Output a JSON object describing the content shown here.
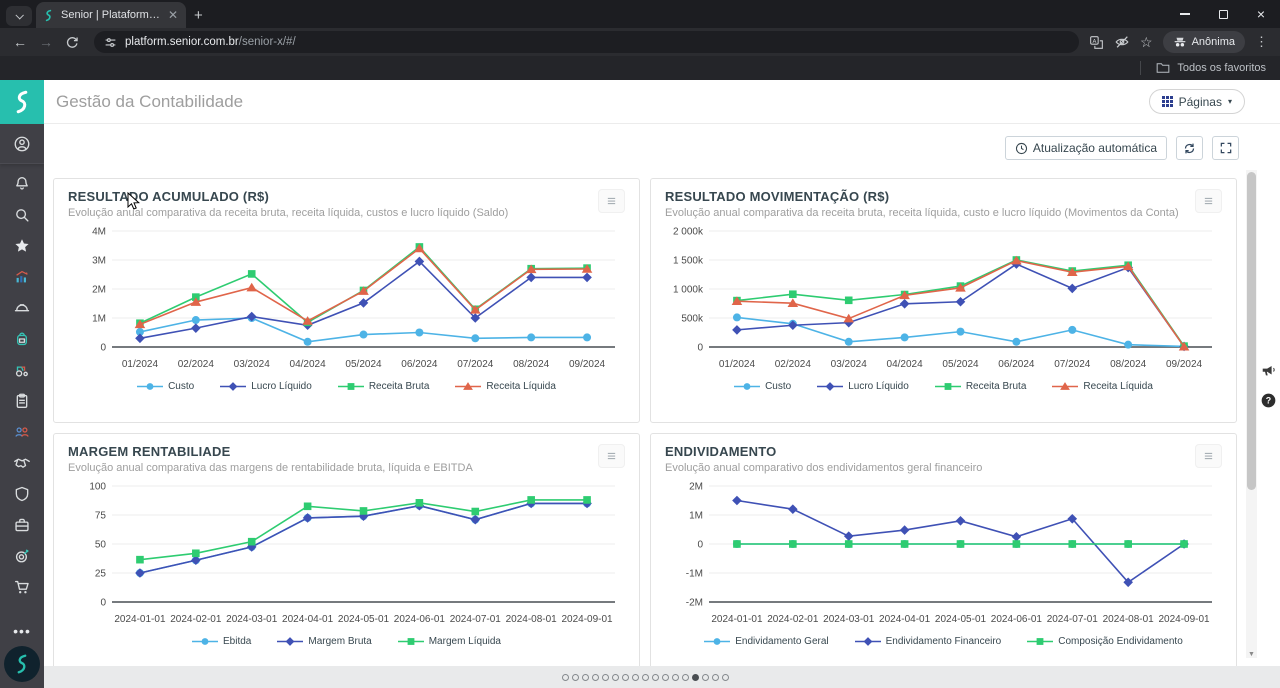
{
  "colors": {
    "accent": "#27bfae"
  },
  "browser": {
    "tab_title": "Senior | Plataforma de solução",
    "url_host": "platform.senior.com.br",
    "url_path": "/senior-x/#/",
    "profile_label": "Anônima",
    "bookmarks_label": "Todos os favoritos"
  },
  "header": {
    "title": "Gestão da Contabilidade",
    "pages_button": "Páginas"
  },
  "toolbar": {
    "auto_update": "Atualização automática"
  },
  "sidebar": {
    "icons": [
      "user-circle-icon",
      "bell-icon",
      "search-icon",
      "star-icon",
      "chart-growth-icon",
      "hard-hat-icon",
      "backpack-icon",
      "tractor-icon",
      "clipboard-icon",
      "team-icon",
      "handshake-icon",
      "shield-icon",
      "briefcase-icon",
      "target-icon",
      "cart-icon"
    ]
  },
  "pagination": {
    "count": 17,
    "active_index": 13
  },
  "chart_data": [
    {
      "type": "line",
      "title": "RESULTADO ACUMULADO (R$)",
      "subtitle": "Evolução anual comparativa da receita bruta, receita líquida, custos e lucro líquido (Saldo)",
      "categories": [
        "01/2024",
        "02/2024",
        "03/2024",
        "04/2024",
        "05/2024",
        "06/2024",
        "07/2024",
        "08/2024",
        "09/2024"
      ],
      "ylim": [
        0,
        4000000
      ],
      "y_ticks": {
        "labels": [
          "0",
          "1M",
          "2M",
          "3M",
          "4M"
        ],
        "values": [
          0,
          1000000,
          2000000,
          3000000,
          4000000
        ]
      },
      "legend_position": "bottom",
      "series": [
        {
          "name": "Custo",
          "color": "#4db3e6",
          "marker": "circle",
          "values": [
            520000,
            930000,
            1000000,
            180000,
            430000,
            500000,
            300000,
            330000,
            330000
          ]
        },
        {
          "name": "Lucro Líquido",
          "color": "#3f51b5",
          "marker": "diamond",
          "values": [
            300000,
            650000,
            1050000,
            750000,
            1520000,
            2950000,
            1000000,
            2400000,
            2400000
          ]
        },
        {
          "name": "Receita Bruta",
          "color": "#2ecc71",
          "marker": "square",
          "values": [
            820000,
            1720000,
            2520000,
            850000,
            1950000,
            3450000,
            1300000,
            2700000,
            2720000
          ]
        },
        {
          "name": "Receita Líquida",
          "color": "#e0654a",
          "marker": "triangle",
          "values": [
            780000,
            1550000,
            2050000,
            900000,
            1930000,
            3400000,
            1280000,
            2680000,
            2690000
          ]
        }
      ]
    },
    {
      "type": "line",
      "title": "RESULTADO MOVIMENTAÇÃO (R$)",
      "subtitle": "Evolução anual comparativa da receita bruta, receita líquida, custo e lucro líquido (Movimentos da Conta)",
      "categories": [
        "01/2024",
        "02/2024",
        "03/2024",
        "04/2024",
        "05/2024",
        "06/2024",
        "07/2024",
        "08/2024",
        "09/2024"
      ],
      "ylim": [
        0,
        2000000
      ],
      "y_ticks": {
        "labels": [
          "0",
          "500k",
          "1 000k",
          "1 500k",
          "2 000k"
        ],
        "values": [
          0,
          500000,
          1000000,
          1500000,
          2000000
        ]
      },
      "legend_position": "bottom",
      "series": [
        {
          "name": "Custo",
          "color": "#4db3e6",
          "marker": "circle",
          "values": [
            510000,
            400000,
            90000,
            165000,
            265000,
            90000,
            295000,
            40000,
            10000
          ]
        },
        {
          "name": "Lucro Líquido",
          "color": "#3f51b5",
          "marker": "diamond",
          "values": [
            295000,
            375000,
            420000,
            745000,
            780000,
            1430000,
            1010000,
            1370000,
            10000
          ]
        },
        {
          "name": "Receita Bruta",
          "color": "#2ecc71",
          "marker": "square",
          "values": [
            800000,
            910000,
            805000,
            905000,
            1050000,
            1500000,
            1310000,
            1410000,
            15000
          ]
        },
        {
          "name": "Receita Líquida",
          "color": "#e0654a",
          "marker": "triangle",
          "values": [
            790000,
            755000,
            490000,
            890000,
            1020000,
            1490000,
            1290000,
            1390000,
            5000
          ]
        }
      ]
    },
    {
      "type": "line",
      "title": "MARGEM RENTABILIADE",
      "subtitle": "Evolução anual comparativa das margens de rentabilidade bruta, líquida e EBITDA",
      "categories": [
        "2024-01-01",
        "2024-02-01",
        "2024-03-01",
        "2024-04-01",
        "2024-05-01",
        "2024-06-01",
        "2024-07-01",
        "2024-08-01",
        "2024-09-01"
      ],
      "ylim": [
        0,
        100
      ],
      "y_ticks": {
        "labels": [
          "0",
          "25",
          "50",
          "75",
          "100"
        ],
        "values": [
          0,
          25,
          50,
          75,
          100
        ]
      },
      "legend_position": "bottom",
      "series": [
        {
          "name": "Ebitda",
          "color": "#4db3e6",
          "marker": "circle",
          "values": [
            25,
            36,
            47.5,
            72.5,
            74,
            83,
            71,
            85,
            85
          ]
        },
        {
          "name": "Margem Bruta",
          "color": "#3f51b5",
          "marker": "diamond",
          "values": [
            25,
            36,
            47.5,
            72.5,
            74,
            83,
            71,
            85,
            85
          ]
        },
        {
          "name": "Margem Líquida",
          "color": "#2ecc71",
          "marker": "square",
          "values": [
            36.5,
            42,
            52,
            82.5,
            78.5,
            85.5,
            78,
            88,
            88
          ]
        }
      ]
    },
    {
      "type": "line",
      "title": "ENDIVIDAMENTO",
      "subtitle": "Evolução anual comparativo dos endividamentos geral financeiro",
      "categories": [
        "2024-01-01",
        "2024-02-01",
        "2024-03-01",
        "2024-04-01",
        "2024-05-01",
        "2024-06-01",
        "2024-07-01",
        "2024-08-01",
        "2024-09-01"
      ],
      "ylim": [
        -2000000,
        2000000
      ],
      "y_ticks": {
        "labels": [
          "-2M",
          "-1M",
          "0",
          "1M",
          "2M"
        ],
        "values": [
          -2000000,
          -1000000,
          0,
          1000000,
          2000000
        ]
      },
      "legend_position": "bottom",
      "series": [
        {
          "name": "Endividamento Geral",
          "color": "#4db3e6",
          "marker": "circle",
          "values": [
            0,
            0,
            0,
            0,
            0,
            0,
            0,
            0,
            0
          ]
        },
        {
          "name": "Endividamento Financeiro",
          "color": "#3f51b5",
          "marker": "diamond",
          "values": [
            1500000,
            1200000,
            270000,
            480000,
            800000,
            250000,
            870000,
            -1320000,
            0
          ]
        },
        {
          "name": "Composição Endividamento",
          "color": "#2ecc71",
          "marker": "square",
          "values": [
            0,
            0,
            0,
            0,
            0,
            0,
            0,
            0,
            0
          ]
        }
      ]
    }
  ]
}
